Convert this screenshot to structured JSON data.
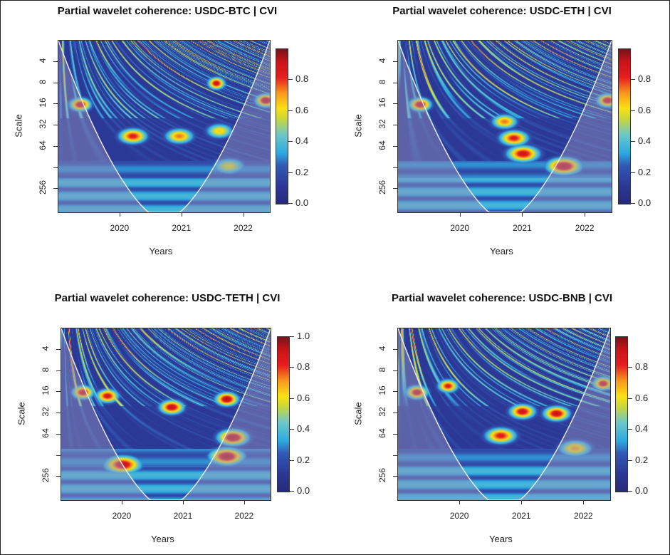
{
  "figure": {
    "panels": [
      {
        "id": "usdc-btc",
        "title": "Partial wavelet coherence: USDC-BTC | CVI"
      },
      {
        "id": "usdc-eth",
        "title": "Partial wavelet coherence: USDC-ETH | CVI"
      },
      {
        "id": "usdc-teth",
        "title": "Partial wavelet coherence: USDC-TETH | CVI"
      },
      {
        "id": "usdc-bnb",
        "title": "Partial wavelet coherence: USDC-BNB | CVI"
      }
    ]
  },
  "chart_data": [
    {
      "type": "heatmap",
      "title": "Partial wavelet coherence: USDC-BTC | CVI",
      "xlabel": "Years",
      "ylabel": "Scale",
      "x_ticks": [
        "2020",
        "2021",
        "2022"
      ],
      "y_ticks": [
        "4",
        "8",
        "16",
        "32",
        "64",
        "256"
      ],
      "y_scale": "log2 (inverted)",
      "colorbar": {
        "ticks": [
          "0.0",
          "0.2",
          "0.4",
          "0.6",
          "0.8"
        ],
        "range": [
          0,
          1
        ]
      },
      "cone_of_influence": true,
      "hotspots": [
        {
          "year": 2019.35,
          "scale": 16,
          "value": 0.9
        },
        {
          "year": 2020.2,
          "scale": 45,
          "value": 0.85
        },
        {
          "year": 2020.95,
          "scale": 45,
          "value": 0.75
        },
        {
          "year": 2021.55,
          "scale": 8,
          "value": 0.9
        },
        {
          "year": 2021.6,
          "scale": 38,
          "value": 0.65
        },
        {
          "year": 2022.35,
          "scale": 14,
          "value": 0.95
        },
        {
          "year": 2021.75,
          "scale": 120,
          "value": 0.6
        }
      ]
    },
    {
      "type": "heatmap",
      "title": "Partial wavelet coherence: USDC-ETH | CVI",
      "xlabel": "Years",
      "ylabel": "Scale",
      "x_ticks": [
        "2020",
        "2021",
        "2022"
      ],
      "y_ticks": [
        "4",
        "8",
        "16",
        "32",
        "64",
        "256"
      ],
      "y_scale": "log2 (inverted)",
      "colorbar": {
        "ticks": [
          "0.0",
          "0.2",
          "0.4",
          "0.6",
          "0.8"
        ],
        "range": [
          0,
          1
        ]
      },
      "cone_of_influence": true,
      "hotspots": [
        {
          "year": 2019.35,
          "scale": 16,
          "value": 0.92
        },
        {
          "year": 2020.7,
          "scale": 28,
          "value": 0.75
        },
        {
          "year": 2020.85,
          "scale": 48,
          "value": 0.85
        },
        {
          "year": 2021.0,
          "scale": 80,
          "value": 0.9
        },
        {
          "year": 2021.65,
          "scale": 120,
          "value": 0.95
        },
        {
          "year": 2022.35,
          "scale": 14,
          "value": 0.92
        }
      ]
    },
    {
      "type": "heatmap",
      "title": "Partial wavelet coherence: USDC-TETH | CVI",
      "xlabel": "Years",
      "ylabel": "Scale",
      "x_ticks": [
        "2020",
        "2021",
        "2022"
      ],
      "y_ticks": [
        "4",
        "8",
        "16",
        "32",
        "64",
        "256"
      ],
      "y_scale": "log2 (inverted)",
      "colorbar": {
        "ticks": [
          "0.0",
          "0.2",
          "0.4",
          "0.6",
          "0.8",
          "1.0"
        ],
        "range": [
          0,
          1
        ]
      },
      "cone_of_influence": true,
      "hotspots": [
        {
          "year": 2019.35,
          "scale": 16,
          "value": 0.9
        },
        {
          "year": 2019.75,
          "scale": 18,
          "value": 0.88
        },
        {
          "year": 2020.0,
          "scale": 170,
          "value": 0.92
        },
        {
          "year": 2020.8,
          "scale": 26,
          "value": 0.92
        },
        {
          "year": 2021.7,
          "scale": 20,
          "value": 0.95
        },
        {
          "year": 2021.8,
          "scale": 70,
          "value": 0.95
        },
        {
          "year": 2021.7,
          "scale": 130,
          "value": 0.95
        }
      ]
    },
    {
      "type": "heatmap",
      "title": "Partial wavelet coherence: USDC-BNB | CVI",
      "xlabel": "Years",
      "ylabel": "Scale",
      "x_ticks": [
        "2020",
        "2021",
        "2022"
      ],
      "y_ticks": [
        "4",
        "8",
        "16",
        "32",
        "64",
        "256"
      ],
      "y_scale": "log2 (inverted)",
      "colorbar": {
        "ticks": [
          "0.0",
          "0.2",
          "0.4",
          "0.6",
          "0.8"
        ],
        "range": [
          0,
          1
        ]
      },
      "cone_of_influence": true,
      "hotspots": [
        {
          "year": 2019.3,
          "scale": 16,
          "value": 0.9
        },
        {
          "year": 2019.8,
          "scale": 13,
          "value": 0.85
        },
        {
          "year": 2021.0,
          "scale": 30,
          "value": 0.9
        },
        {
          "year": 2021.55,
          "scale": 32,
          "value": 0.92
        },
        {
          "year": 2020.65,
          "scale": 66,
          "value": 0.85
        },
        {
          "year": 2021.85,
          "scale": 100,
          "value": 0.7
        },
        {
          "year": 2022.3,
          "scale": 12,
          "value": 0.9
        }
      ]
    }
  ]
}
